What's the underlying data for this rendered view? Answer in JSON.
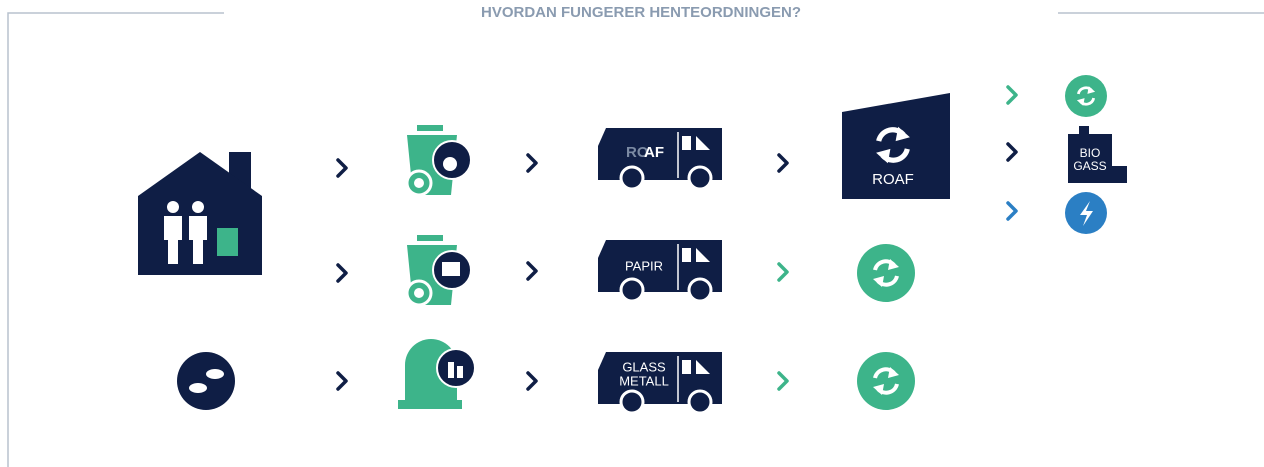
{
  "title": "HVORDAN FUNGERER HENTEORDNINGEN?",
  "trucks": [
    {
      "label_parts": [
        "RO",
        "AF"
      ]
    },
    {
      "label_lines": [
        "PAPIR"
      ]
    },
    {
      "label_lines": [
        "GLASS",
        "METALL"
      ]
    }
  ],
  "facility": {
    "label": "ROAF"
  },
  "biogas": {
    "label_lines": [
      "BIO",
      "GASS"
    ]
  }
}
